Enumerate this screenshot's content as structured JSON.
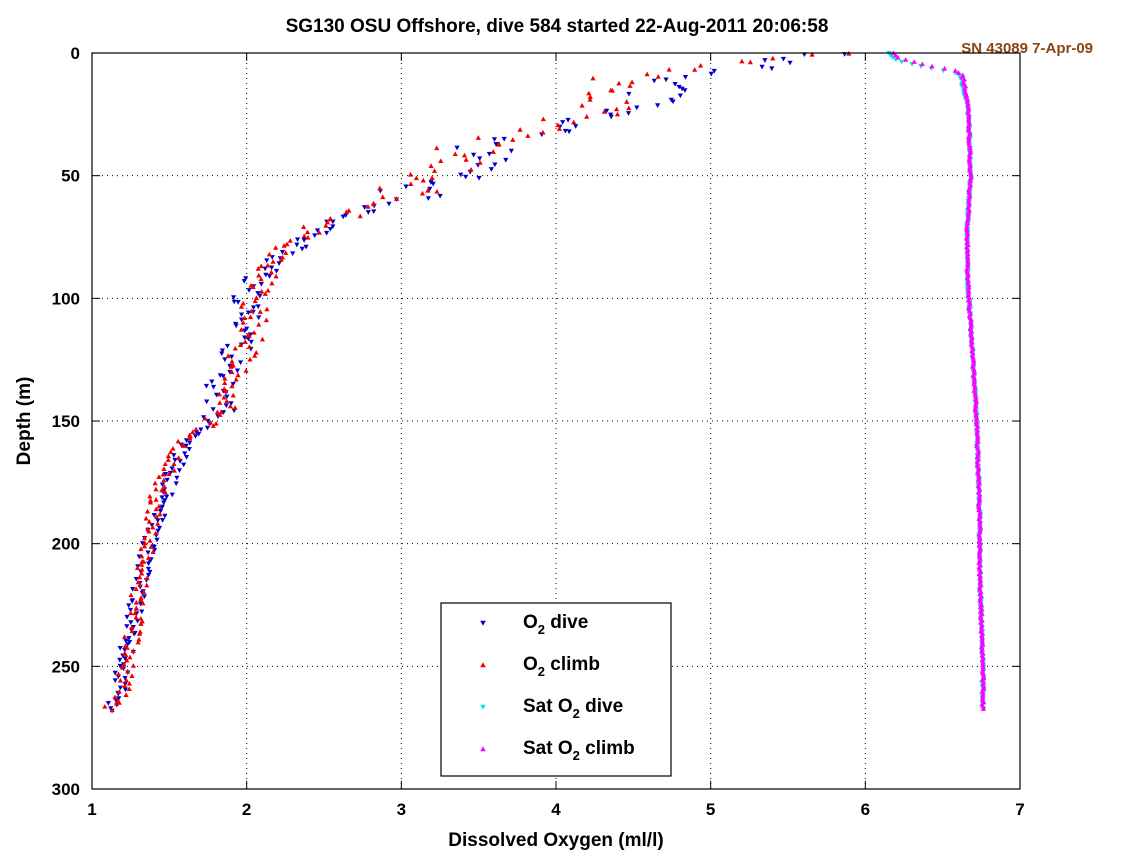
{
  "chart_data": {
    "type": "scatter",
    "title": "SG130 OSU Offshore, dive 584 started 22-Aug-2011 20:06:58",
    "annotation": "SN 43089 7-Apr-09",
    "xlabel": "Dissolved Oxygen (ml/l)",
    "ylabel": "Depth (m)",
    "xlim": [
      1,
      7
    ],
    "ylim": [
      0,
      300
    ],
    "y_reversed": true,
    "xticks": [
      "1",
      "2",
      "3",
      "4",
      "5",
      "6",
      "7"
    ],
    "yticks": [
      "0",
      "50",
      "100",
      "150",
      "200",
      "250",
      "300"
    ],
    "grid": true,
    "legend_position": "bottom-center",
    "colors": {
      "o2_dive": "#0000cc",
      "o2_climb": "#ee0000",
      "sat_dive": "#00e5e5",
      "sat_climb": "#ff00ff"
    },
    "series": [
      {
        "name": "O2 dive",
        "label_main": "O",
        "label_sub": "2",
        "label_rest": " dive",
        "label_prefix": "",
        "marker": "triangle-down",
        "profile": [
          [
            0,
            5.8
          ],
          [
            5,
            5.3
          ],
          [
            10,
            4.9
          ],
          [
            15,
            4.7
          ],
          [
            20,
            4.6
          ],
          [
            25,
            4.3
          ],
          [
            30,
            4.1
          ],
          [
            35,
            3.7
          ],
          [
            40,
            3.5
          ],
          [
            45,
            3.45
          ],
          [
            50,
            3.4
          ],
          [
            55,
            3.1
          ],
          [
            60,
            3.0
          ],
          [
            65,
            2.75
          ],
          [
            70,
            2.55
          ],
          [
            75,
            2.4
          ],
          [
            80,
            2.3
          ],
          [
            85,
            2.2
          ],
          [
            90,
            2.1
          ],
          [
            95,
            2.0
          ],
          [
            100,
            2.0
          ],
          [
            105,
            2.0
          ],
          [
            110,
            2.0
          ],
          [
            115,
            2.0
          ],
          [
            120,
            1.95
          ],
          [
            125,
            1.9
          ],
          [
            130,
            1.85
          ],
          [
            135,
            1.82
          ],
          [
            140,
            1.82
          ],
          [
            145,
            1.85
          ],
          [
            150,
            1.8
          ],
          [
            160,
            1.6
          ],
          [
            175,
            1.5
          ],
          [
            190,
            1.42
          ],
          [
            205,
            1.35
          ],
          [
            220,
            1.3
          ],
          [
            235,
            1.25
          ],
          [
            250,
            1.2
          ],
          [
            260,
            1.17
          ],
          [
            268,
            1.12
          ]
        ]
      },
      {
        "name": "O2 climb",
        "label_main": "O",
        "label_sub": "2",
        "label_rest": " climb",
        "label_prefix": "",
        "marker": "triangle-up",
        "profile": [
          [
            0,
            5.9
          ],
          [
            5,
            5.0
          ],
          [
            10,
            4.4
          ],
          [
            15,
            4.3
          ],
          [
            20,
            4.3
          ],
          [
            25,
            4.2
          ],
          [
            30,
            4.0
          ],
          [
            35,
            3.6
          ],
          [
            40,
            3.4
          ],
          [
            45,
            3.3
          ],
          [
            50,
            3.2
          ],
          [
            55,
            3.05
          ],
          [
            60,
            2.95
          ],
          [
            65,
            2.7
          ],
          [
            70,
            2.5
          ],
          [
            75,
            2.35
          ],
          [
            80,
            2.25
          ],
          [
            85,
            2.15
          ],
          [
            90,
            2.15
          ],
          [
            95,
            2.05
          ],
          [
            100,
            2.05
          ],
          [
            105,
            2.05
          ],
          [
            110,
            2.05
          ],
          [
            115,
            2.05
          ],
          [
            120,
            2.0
          ],
          [
            125,
            1.95
          ],
          [
            130,
            1.9
          ],
          [
            135,
            1.88
          ],
          [
            140,
            1.85
          ],
          [
            145,
            1.85
          ],
          [
            150,
            1.8
          ],
          [
            160,
            1.55
          ],
          [
            175,
            1.45
          ],
          [
            190,
            1.38
          ],
          [
            205,
            1.35
          ],
          [
            220,
            1.3
          ],
          [
            235,
            1.27
          ],
          [
            250,
            1.22
          ],
          [
            260,
            1.2
          ],
          [
            268,
            1.1
          ]
        ]
      },
      {
        "name": "Sat O2 dive",
        "label_main": "O",
        "label_sub": "2",
        "label_rest": " dive",
        "label_prefix": "Sat ",
        "marker": "triangle-down",
        "profile": [
          [
            0,
            6.15
          ],
          [
            3,
            6.2
          ],
          [
            6,
            6.4
          ],
          [
            8,
            6.58
          ],
          [
            10,
            6.62
          ],
          [
            15,
            6.63
          ],
          [
            20,
            6.66
          ],
          [
            30,
            6.67
          ],
          [
            50,
            6.68
          ],
          [
            70,
            6.66
          ],
          [
            90,
            6.66
          ],
          [
            110,
            6.68
          ],
          [
            130,
            6.7
          ],
          [
            150,
            6.72
          ],
          [
            170,
            6.73
          ],
          [
            190,
            6.74
          ],
          [
            210,
            6.74
          ],
          [
            230,
            6.75
          ],
          [
            250,
            6.76
          ],
          [
            268,
            6.76
          ]
        ]
      },
      {
        "name": "Sat O2 climb",
        "label_main": "O",
        "label_sub": "2",
        "label_rest": " climb",
        "label_prefix": "Sat ",
        "marker": "triangle-up",
        "profile": [
          [
            0,
            6.18
          ],
          [
            2,
            6.22
          ],
          [
            5,
            6.4
          ],
          [
            7,
            6.58
          ],
          [
            9,
            6.63
          ],
          [
            12,
            6.64
          ],
          [
            20,
            6.66
          ],
          [
            30,
            6.67
          ],
          [
            50,
            6.68
          ],
          [
            70,
            6.66
          ],
          [
            90,
            6.66
          ],
          [
            110,
            6.68
          ],
          [
            130,
            6.7
          ],
          [
            150,
            6.72
          ],
          [
            170,
            6.73
          ],
          [
            190,
            6.74
          ],
          [
            210,
            6.74
          ],
          [
            230,
            6.75
          ],
          [
            250,
            6.76
          ],
          [
            268,
            6.76
          ]
        ]
      }
    ]
  }
}
